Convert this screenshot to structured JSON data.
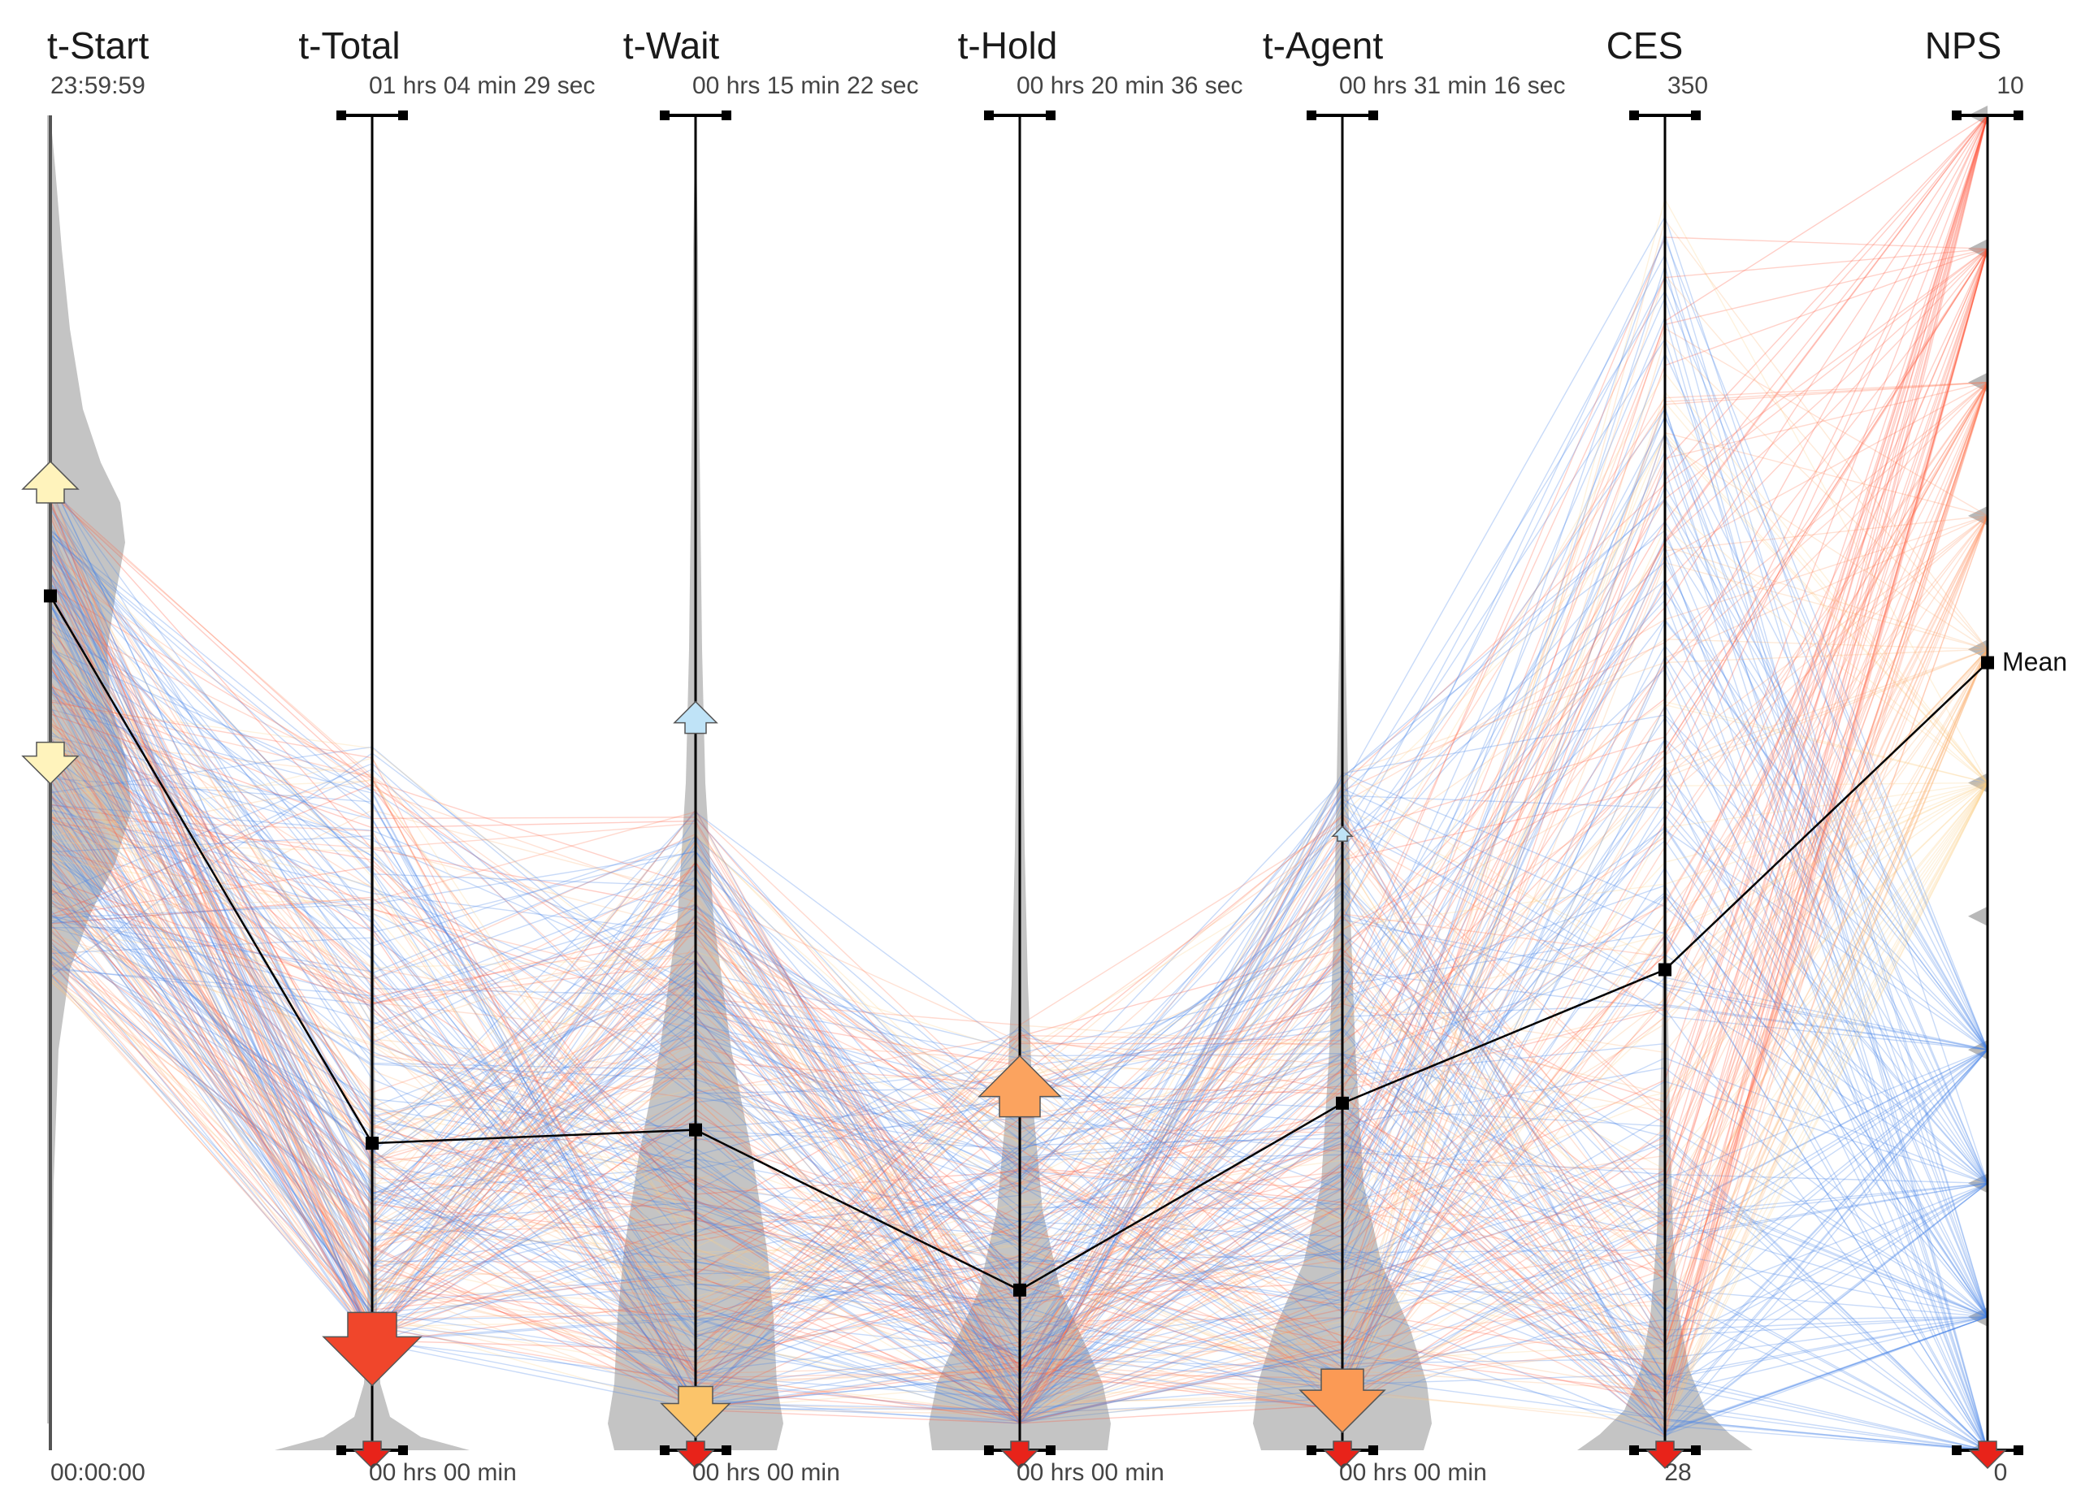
{
  "chart_data": {
    "type": "parallel_coordinates",
    "title": "",
    "axes": [
      {
        "id": "t-start",
        "label": "t-Start",
        "max": "23:59:59",
        "min": "00:00:00",
        "mean": 0.64
      },
      {
        "id": "t-total",
        "label": "t-Total",
        "max": "01 hrs 04 min 29 sec",
        "min": "00 hrs 00 min",
        "mean": 0.23
      },
      {
        "id": "t-wait",
        "label": "t-Wait",
        "max": "00 hrs 15 min 22 sec",
        "min": "00 hrs 00 min",
        "mean": 0.24
      },
      {
        "id": "t-hold",
        "label": "t-Hold",
        "max": "00 hrs 20 min 36 sec",
        "min": "00 hrs 00 min",
        "mean": 0.12
      },
      {
        "id": "t-agent",
        "label": "t-Agent",
        "max": "00 hrs 31 min 16 sec",
        "min": "00 hrs 00 min",
        "mean": 0.26
      },
      {
        "id": "ces",
        "label": "CES",
        "max": "350",
        "min": "28",
        "mean": 0.36
      },
      {
        "id": "nps",
        "label": "NPS",
        "max": "10",
        "min": "0",
        "mean": 0.59
      }
    ],
    "mean_label": "Mean",
    "line_colors": {
      "high_nps": "#ff4a33",
      "low_nps": "#4a86e8",
      "mean_line": "#000000"
    },
    "series_note": "Each line is one call record; line color encodes NPS (red = high, blue = low)."
  }
}
